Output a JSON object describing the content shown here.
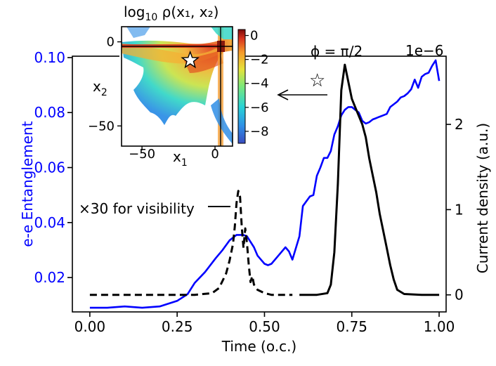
{
  "chart_data": [
    {
      "type": "line",
      "title": "",
      "xlabel": "Time (o.c.)",
      "ylabel_left": "e-e Entanglement",
      "ylabel_right": "Current density (a.u.)",
      "right_axis_scale": "1e−6",
      "xlim": [
        -0.05,
        1.02
      ],
      "ylim_left": [
        0.0075,
        0.1005
      ],
      "ylim_right": [
        -2e-07,
        2.8e-06
      ],
      "x_ticks": [
        0.0,
        0.25,
        0.5,
        0.75,
        1.0
      ],
      "x_tick_labels": [
        "0.00",
        "0.25",
        "0.50",
        "0.75",
        "1.00"
      ],
      "left_ticks": [
        0.02,
        0.04,
        0.06,
        0.08,
        0.1
      ],
      "left_tick_labels": [
        "0.02",
        "0.04",
        "0.06",
        "0.08",
        "0.10"
      ],
      "right_ticks": [
        0,
        1e-06,
        2e-06
      ],
      "right_tick_labels": [
        "0",
        "1",
        "2"
      ],
      "colors": {
        "entanglement": "#0000ff",
        "current": "#000000"
      },
      "series": [
        {
          "name": "e-e Entanglement",
          "axis": "left",
          "color": "#0000ff",
          "style": "solid",
          "x": [
            0.0,
            0.05,
            0.1,
            0.15,
            0.2,
            0.25,
            0.28,
            0.3,
            0.33,
            0.36,
            0.38,
            0.4,
            0.42,
            0.44,
            0.45,
            0.47,
            0.48,
            0.5,
            0.51,
            0.52,
            0.54,
            0.56,
            0.57,
            0.58,
            0.6,
            0.61,
            0.63,
            0.64,
            0.65,
            0.66,
            0.67,
            0.68,
            0.69,
            0.7,
            0.71,
            0.72,
            0.73,
            0.74,
            0.75,
            0.76,
            0.77,
            0.78,
            0.79,
            0.8,
            0.81,
            0.82,
            0.83,
            0.84,
            0.85,
            0.86,
            0.87,
            0.88,
            0.89,
            0.9,
            0.91,
            0.92,
            0.93,
            0.94,
            0.95,
            0.96,
            0.97,
            0.98,
            0.99,
            1.0
          ],
          "values": [
            0.009,
            0.009,
            0.0095,
            0.009,
            0.0095,
            0.0115,
            0.014,
            0.018,
            0.022,
            0.027,
            0.03,
            0.0335,
            0.0355,
            0.0355,
            0.035,
            0.031,
            0.028,
            0.025,
            0.0245,
            0.025,
            0.028,
            0.031,
            0.0295,
            0.0265,
            0.035,
            0.046,
            0.0495,
            0.05,
            0.057,
            0.06,
            0.0635,
            0.0635,
            0.066,
            0.072,
            0.075,
            0.079,
            0.081,
            0.082,
            0.082,
            0.081,
            0.08,
            0.077,
            0.076,
            0.0765,
            0.0775,
            0.078,
            0.0785,
            0.079,
            0.0795,
            0.082,
            0.083,
            0.084,
            0.0855,
            0.086,
            0.087,
            0.0885,
            0.092,
            0.089,
            0.093,
            0.094,
            0.0945,
            0.097,
            0.099,
            0.0915
          ]
        },
        {
          "name": "Current density (×30 for visibility)",
          "axis": "right",
          "color": "#000000",
          "style": "dashed",
          "x": [
            0.0,
            0.1,
            0.2,
            0.3,
            0.35,
            0.37,
            0.39,
            0.4,
            0.41,
            0.415,
            0.42,
            0.425,
            0.43,
            0.435,
            0.44,
            0.445,
            0.45,
            0.455,
            0.46,
            0.465,
            0.47,
            0.48,
            0.5,
            0.52,
            0.55,
            0.58
          ],
          "values": [
            0,
            0,
            0,
            0,
            2e-08,
            8e-08,
            2.5e-07,
            4e-07,
            6e-07,
            8e-07,
            1.08e-06,
            1.22e-06,
            1.15e-06,
            8e-07,
            5.5e-07,
            7.8e-07,
            6e-07,
            3.5e-07,
            1.5e-07,
            2.2e-07,
            1.2e-07,
            6e-08,
            2e-08,
            0,
            0,
            0
          ]
        },
        {
          "name": "Current density",
          "axis": "right",
          "color": "#000000",
          "style": "solid",
          "x": [
            0.6,
            0.65,
            0.68,
            0.69,
            0.7,
            0.71,
            0.72,
            0.73,
            0.74,
            0.75,
            0.76,
            0.77,
            0.78,
            0.79,
            0.8,
            0.81,
            0.82,
            0.83,
            0.84,
            0.85,
            0.86,
            0.87,
            0.88,
            0.9,
            0.95,
            1.0
          ],
          "values": [
            0,
            0,
            2e-08,
            1.2e-07,
            5e-07,
            1.3e-06,
            2.4e-06,
            2.7e-06,
            2.5e-06,
            2.3e-06,
            2.2e-06,
            2.1e-06,
            2e-06,
            1.85e-06,
            1.6e-06,
            1.4e-06,
            1.2e-06,
            9.5e-07,
            7.5e-07,
            5.5e-07,
            3.5e-07,
            1.8e-07,
            6e-08,
            1e-08,
            0,
            0
          ]
        }
      ],
      "annotations": [
        {
          "text": "×30 for visibility"
        },
        {
          "text": "ϕ = π/2"
        },
        {
          "text": "☆"
        }
      ]
    },
    {
      "type": "heatmap",
      "title": "log₁₀ ρ(x₁, x₂)",
      "title_main": "log",
      "title_sub": "10",
      "title_rest": " ρ(x₁, x₂)",
      "xlabel": "x",
      "xlabel_sub": "1",
      "ylabel": "x",
      "ylabel_sub": "2",
      "xlim": [
        -64,
        12
      ],
      "ylim": [
        -62,
        9
      ],
      "x_ticks": [
        -50,
        0
      ],
      "x_tick_labels": [
        "−50",
        "0"
      ],
      "y_ticks": [
        0,
        -50
      ],
      "y_tick_labels": [
        "0",
        "−50"
      ],
      "colorbar_ticks": [
        0,
        -2,
        -4,
        -6,
        -8
      ],
      "colorbar_tick_labels": [
        "0",
        "−2",
        "−4",
        "−6",
        "−8"
      ],
      "colorbar_range": [
        -9,
        0.5
      ],
      "marker_star_at": [
        -17,
        -11
      ]
    }
  ]
}
